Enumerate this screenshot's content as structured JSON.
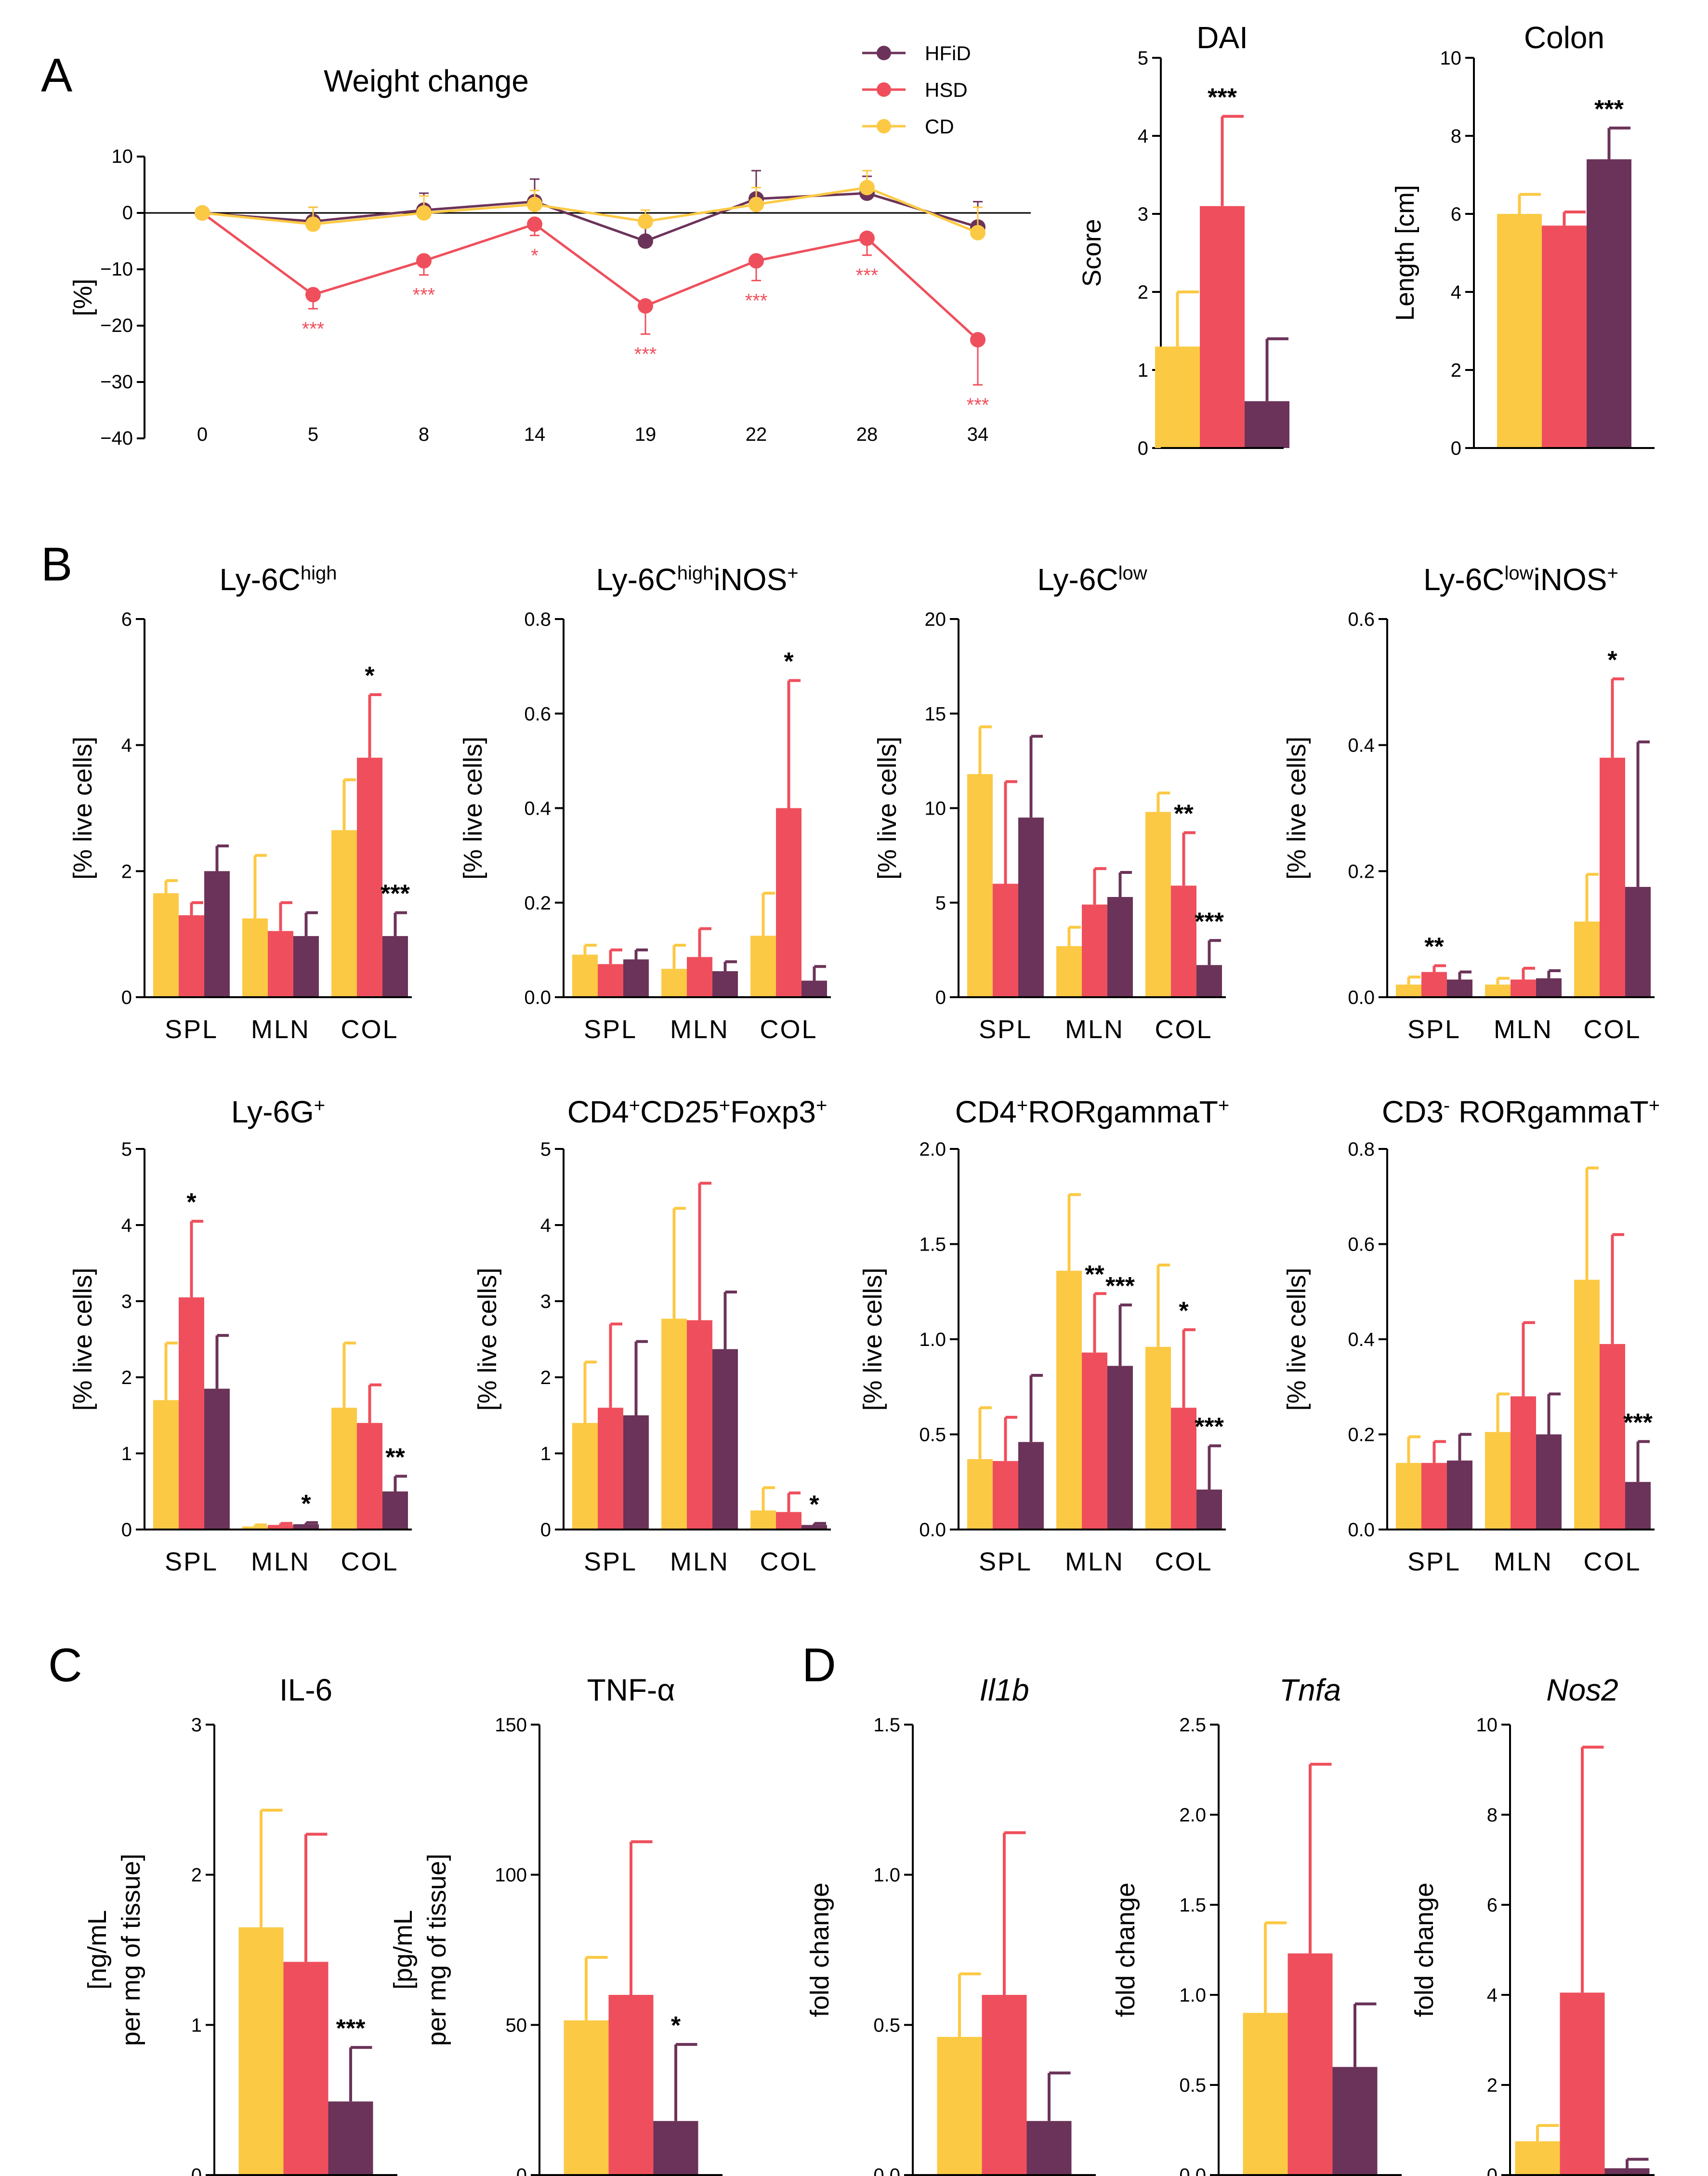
{
  "colors": {
    "CD": "#fcc944",
    "HSD": "#ef4f5c",
    "HFiD": "#6b3359",
    "text": "#000000"
  },
  "panel_labels": {
    "A": "A",
    "B": "B",
    "C": "C",
    "D": "D"
  },
  "chart_data": [
    {
      "id": "weight",
      "type": "line",
      "title": "Weight change",
      "ylabel": "[%]",
      "x": [
        "0",
        "5",
        "8",
        "14",
        "19",
        "22",
        "28",
        "34"
      ],
      "ylim": [
        -40,
        10
      ],
      "yticks": [
        "10",
        "0",
        "−10",
        "−20",
        "−30",
        "−40"
      ],
      "ytickvals": [
        10,
        0,
        -10,
        -20,
        -30,
        -40
      ],
      "legend": [
        "HFiD",
        "HSD",
        "CD"
      ],
      "series": [
        {
          "name": "HFiD",
          "values": [
            0,
            -1.5,
            0.5,
            2,
            -5,
            2.5,
            3.5,
            -2.5
          ],
          "err": [
            0,
            2.5,
            3,
            4,
            3,
            5,
            3,
            4.5
          ]
        },
        {
          "name": "HSD",
          "values": [
            0,
            -14.5,
            -8.5,
            -2,
            -16.5,
            -8.5,
            -4.5,
            -22.5
          ],
          "err": [
            0,
            2.5,
            2.5,
            2,
            5,
            3.5,
            3,
            8
          ]
        },
        {
          "name": "CD",
          "values": [
            0,
            -2,
            0,
            1.5,
            -1.5,
            1.5,
            4.5,
            -3.5
          ],
          "err": [
            0,
            3,
            3,
            2.5,
            2,
            3,
            3,
            4.5
          ]
        }
      ],
      "sig": [
        "",
        "***",
        "***",
        "*",
        "***",
        "***",
        "***",
        "***"
      ]
    },
    {
      "id": "dai",
      "type": "bar",
      "title": "DAI",
      "ylabel": "Score",
      "ylim": [
        0,
        5
      ],
      "yticks": [
        "0",
        "1",
        "2",
        "3",
        "4",
        "5"
      ],
      "ytickvals": [
        0,
        1,
        2,
        3,
        4,
        5
      ],
      "categories": [
        ""
      ],
      "series": [
        {
          "name": "CD",
          "values": [
            1.3
          ],
          "err": [
            0.7
          ]
        },
        {
          "name": "HSD",
          "values": [
            3.1
          ],
          "err": [
            1.15
          ]
        },
        {
          "name": "HFiD",
          "values": [
            0.6
          ],
          "err": [
            0.8
          ]
        }
      ],
      "stars": [
        {
          "cat": 0,
          "s": 1,
          "t": "***"
        }
      ]
    },
    {
      "id": "colon",
      "type": "bar",
      "title": "Colon",
      "ylabel": "Length [cm]",
      "ylim": [
        0,
        10
      ],
      "yticks": [
        "0",
        "2",
        "4",
        "6",
        "8",
        "10"
      ],
      "ytickvals": [
        0,
        2,
        4,
        6,
        8,
        10
      ],
      "categories": [
        ""
      ],
      "series": [
        {
          "name": "CD",
          "values": [
            6
          ],
          "err": [
            0.5
          ]
        },
        {
          "name": "HSD",
          "values": [
            5.7
          ],
          "err": [
            0.35
          ]
        },
        {
          "name": "HFiD",
          "values": [
            7.4
          ],
          "err": [
            0.8
          ]
        }
      ],
      "stars": [
        {
          "cat": 0,
          "s": 2,
          "t": "***"
        }
      ]
    },
    {
      "id": "ly6chigh",
      "type": "bar",
      "title": "Ly-6C",
      "title_sup": "high",
      "title_rest": "",
      "ylabel": "[% live cells]",
      "ylim": [
        0,
        6
      ],
      "yticks": [
        "0",
        "2",
        "4",
        "6"
      ],
      "ytickvals": [
        0,
        2,
        4,
        6
      ],
      "categories": [
        "SPL",
        "MLN",
        "COL"
      ],
      "series": [
        {
          "name": "CD",
          "values": [
            1.65,
            1.25,
            2.65
          ],
          "err": [
            0.2,
            1.0,
            0.8
          ]
        },
        {
          "name": "HSD",
          "values": [
            1.3,
            1.05,
            3.8
          ],
          "err": [
            0.2,
            0.45,
            1.0
          ]
        },
        {
          "name": "HFiD",
          "values": [
            2.0,
            0.97,
            0.97
          ],
          "err": [
            0.4,
            0.37,
            0.37
          ]
        }
      ],
      "stars": [
        {
          "cat": 2,
          "s": 1,
          "t": "*"
        },
        {
          "cat": 2,
          "s": 2,
          "t": "***"
        }
      ]
    },
    {
      "id": "ly6chighinos",
      "type": "bar",
      "title": "Ly-6C",
      "title_sup": "high",
      "title_rest": "iNOS",
      "title_sup2": "+",
      "ylabel": "[% live cells]",
      "ylim": [
        0,
        0.8
      ],
      "yticks": [
        "0.0",
        "0.2",
        "0.4",
        "0.6",
        "0.8"
      ],
      "ytickvals": [
        0,
        0.2,
        0.4,
        0.6,
        0.8
      ],
      "categories": [
        "SPL",
        "MLN",
        "COL"
      ],
      "series": [
        {
          "name": "CD",
          "values": [
            0.09,
            0.06,
            0.13
          ],
          "err": [
            0.02,
            0.05,
            0.09
          ]
        },
        {
          "name": "HSD",
          "values": [
            0.07,
            0.085,
            0.4
          ],
          "err": [
            0.03,
            0.06,
            0.27
          ]
        },
        {
          "name": "HFiD",
          "values": [
            0.08,
            0.055,
            0.035
          ],
          "err": [
            0.02,
            0.02,
            0.03
          ]
        }
      ],
      "stars": [
        {
          "cat": 2,
          "s": 1,
          "t": "*"
        }
      ]
    },
    {
      "id": "ly6clow",
      "type": "bar",
      "title": "Ly-6C",
      "title_sup": "low",
      "title_rest": "",
      "ylabel": "[% live cells]",
      "ylim": [
        0,
        20
      ],
      "yticks": [
        "0",
        "5",
        "10",
        "15",
        "20"
      ],
      "ytickvals": [
        0,
        5,
        10,
        15,
        20
      ],
      "categories": [
        "SPL",
        "MLN",
        "COL"
      ],
      "series": [
        {
          "name": "CD",
          "values": [
            11.8,
            2.7,
            9.8
          ],
          "err": [
            2.5,
            1.0,
            1.0
          ]
        },
        {
          "name": "HSD",
          "values": [
            6,
            4.9,
            5.9
          ],
          "err": [
            5.4,
            1.9,
            2.8
          ]
        },
        {
          "name": "HFiD",
          "values": [
            9.5,
            5.3,
            1.7
          ],
          "err": [
            4.3,
            1.3,
            1.3
          ]
        }
      ],
      "stars": [
        {
          "cat": 2,
          "s": 1,
          "t": "**"
        },
        {
          "cat": 2,
          "s": 2,
          "t": "***"
        }
      ]
    },
    {
      "id": "ly6clowinos",
      "type": "bar",
      "title": "Ly-6C",
      "title_sup": "low",
      "title_rest": "iNOS",
      "title_sup2": "+",
      "ylabel": "[% live cells]",
      "ylim": [
        0,
        0.6
      ],
      "yticks": [
        "0.0",
        "0.2",
        "0.4",
        "0.6"
      ],
      "ytickvals": [
        0,
        0.2,
        0.4,
        0.6
      ],
      "categories": [
        "SPL",
        "MLN",
        "COL"
      ],
      "series": [
        {
          "name": "CD",
          "values": [
            0.02,
            0.02,
            0.12
          ],
          "err": [
            0.012,
            0.01,
            0.075
          ]
        },
        {
          "name": "HSD",
          "values": [
            0.04,
            0.028,
            0.38
          ],
          "err": [
            0.01,
            0.018,
            0.125
          ]
        },
        {
          "name": "HFiD",
          "values": [
            0.028,
            0.03,
            0.175
          ],
          "err": [
            0.012,
            0.012,
            0.23
          ]
        }
      ],
      "stars": [
        {
          "cat": 0,
          "s": 1,
          "t": "**"
        },
        {
          "cat": 2,
          "s": 1,
          "t": "*"
        }
      ]
    },
    {
      "id": "ly6g",
      "type": "bar",
      "title": "Ly-6G",
      "title_sup": "+",
      "title_rest": "",
      "ylabel": "[% live cells]",
      "ylim": [
        0,
        5
      ],
      "yticks": [
        "0",
        "1",
        "2",
        "3",
        "4",
        "5"
      ],
      "ytickvals": [
        0,
        1,
        2,
        3,
        4,
        5
      ],
      "categories": [
        "SPL",
        "MLN",
        "COL"
      ],
      "series": [
        {
          "name": "CD",
          "values": [
            1.7,
            0.04,
            1.6
          ],
          "err": [
            0.75,
            0.02,
            0.85
          ]
        },
        {
          "name": "HSD",
          "values": [
            3.05,
            0.06,
            1.4
          ],
          "err": [
            1.0,
            0.02,
            0.5
          ]
        },
        {
          "name": "HFiD",
          "values": [
            1.85,
            0.07,
            0.5
          ],
          "err": [
            0.7,
            0.02,
            0.2
          ]
        }
      ],
      "stars": [
        {
          "cat": 0,
          "s": 1,
          "t": "*"
        },
        {
          "cat": 1,
          "s": 2,
          "t": "*"
        },
        {
          "cat": 2,
          "s": 2,
          "t": "**"
        }
      ]
    },
    {
      "id": "treg",
      "type": "bar",
      "title": "CD4",
      "title_sup": "+",
      "title_rest": "CD25",
      "title_sup2": "+",
      "title_rest2": "Foxp3",
      "title_sup3": "+",
      "ylabel": "[% live cells]",
      "ylim": [
        0,
        5
      ],
      "yticks": [
        "0",
        "1",
        "2",
        "3",
        "4",
        "5"
      ],
      "ytickvals": [
        0,
        1,
        2,
        3,
        4,
        5
      ],
      "categories": [
        "SPL",
        "MLN",
        "COL"
      ],
      "series": [
        {
          "name": "CD",
          "values": [
            1.4,
            2.77,
            0.25
          ],
          "err": [
            0.8,
            1.45,
            0.3
          ]
        },
        {
          "name": "HSD",
          "values": [
            1.6,
            2.75,
            0.23
          ],
          "err": [
            1.1,
            1.8,
            0.25
          ]
        },
        {
          "name": "HFiD",
          "values": [
            1.5,
            2.37,
            0.06
          ],
          "err": [
            0.97,
            0.75,
            0.02
          ]
        }
      ],
      "stars": [
        {
          "cat": 2,
          "s": 2,
          "t": "*"
        }
      ]
    },
    {
      "id": "th17",
      "type": "bar",
      "title": "CD4",
      "title_sup": "+",
      "title_rest": "RORgammaT",
      "title_sup2": "+",
      "ylabel": "[% live cells]",
      "ylim": [
        0,
        2
      ],
      "yticks": [
        "0.0",
        "0.5",
        "1.0",
        "1.5",
        "2.0"
      ],
      "ytickvals": [
        0,
        0.5,
        1,
        1.5,
        2
      ],
      "categories": [
        "SPL",
        "MLN",
        "COL"
      ],
      "series": [
        {
          "name": "CD",
          "values": [
            0.37,
            1.36,
            0.96
          ],
          "err": [
            0.27,
            0.4,
            0.43
          ]
        },
        {
          "name": "HSD",
          "values": [
            0.36,
            0.93,
            0.64
          ],
          "err": [
            0.23,
            0.31,
            0.41
          ]
        },
        {
          "name": "HFiD",
          "values": [
            0.46,
            0.86,
            0.21
          ],
          "err": [
            0.35,
            0.32,
            0.23
          ]
        }
      ],
      "stars": [
        {
          "cat": 1,
          "s": 1,
          "t": "**"
        },
        {
          "cat": 1,
          "s": 2,
          "t": "***"
        },
        {
          "cat": 2,
          "s": 1,
          "t": "*"
        },
        {
          "cat": 2,
          "s": 2,
          "t": "***"
        }
      ]
    },
    {
      "id": "ilc3",
      "type": "bar",
      "title": "CD3",
      "title_sup": "-",
      "title_rest": " RORgammaT",
      "title_sup2": "+",
      "ylabel": "[% live cells]",
      "ylim": [
        0,
        0.8
      ],
      "yticks": [
        "0.0",
        "0.2",
        "0.4",
        "0.6",
        "0.8"
      ],
      "ytickvals": [
        0,
        0.2,
        0.4,
        0.6,
        0.8
      ],
      "categories": [
        "SPL",
        "MLN",
        "COL"
      ],
      "series": [
        {
          "name": "CD",
          "values": [
            0.14,
            0.205,
            0.525
          ],
          "err": [
            0.055,
            0.08,
            0.235
          ]
        },
        {
          "name": "HSD",
          "values": [
            0.14,
            0.28,
            0.39
          ],
          "err": [
            0.045,
            0.155,
            0.23
          ]
        },
        {
          "name": "HFiD",
          "values": [
            0.145,
            0.2,
            0.1
          ],
          "err": [
            0.055,
            0.085,
            0.085
          ]
        }
      ],
      "stars": [
        {
          "cat": 2,
          "s": 2,
          "t": "***"
        }
      ]
    },
    {
      "id": "il6",
      "type": "bar",
      "title": "IL-6",
      "ylabel": "[ng/mL",
      "ylabel2": "per mg of tissue]",
      "ylim": [
        0,
        3
      ],
      "yticks": [
        "0",
        "1",
        "2",
        "3"
      ],
      "ytickvals": [
        0,
        1,
        2,
        3
      ],
      "categories": [
        ""
      ],
      "series": [
        {
          "name": "CD",
          "values": [
            1.65
          ],
          "err": [
            0.78
          ]
        },
        {
          "name": "HSD",
          "values": [
            1.42
          ],
          "err": [
            0.85
          ]
        },
        {
          "name": "HFiD",
          "values": [
            0.49
          ],
          "err": [
            0.36
          ]
        }
      ],
      "stars": [
        {
          "cat": 0,
          "s": 2,
          "t": "***"
        }
      ]
    },
    {
      "id": "tnf",
      "type": "bar",
      "title": "TNF-α",
      "ylabel": "[pg/mL",
      "ylabel2": "per mg of tissue]",
      "ylim": [
        0,
        150
      ],
      "yticks": [
        "0",
        "50",
        "100",
        "150"
      ],
      "ytickvals": [
        0,
        50,
        100,
        150
      ],
      "categories": [
        ""
      ],
      "series": [
        {
          "name": "CD",
          "values": [
            51.5
          ],
          "err": [
            21
          ]
        },
        {
          "name": "HSD",
          "values": [
            60
          ],
          "err": [
            51
          ]
        },
        {
          "name": "HFiD",
          "values": [
            18
          ],
          "err": [
            25.5
          ]
        }
      ],
      "stars": [
        {
          "cat": 0,
          "s": 2,
          "t": "*"
        }
      ]
    },
    {
      "id": "il1b",
      "type": "bar",
      "title": "Il1b",
      "italic": true,
      "ylabel": "fold change",
      "ylim": [
        0,
        1.5
      ],
      "yticks": [
        "0.0",
        "0.5",
        "1.0",
        "1.5"
      ],
      "ytickvals": [
        0,
        0.5,
        1,
        1.5
      ],
      "categories": [
        ""
      ],
      "series": [
        {
          "name": "CD",
          "values": [
            0.46
          ],
          "err": [
            0.21
          ]
        },
        {
          "name": "HSD",
          "values": [
            0.6
          ],
          "err": [
            0.54
          ]
        },
        {
          "name": "HFiD",
          "values": [
            0.18
          ],
          "err": [
            0.16
          ]
        }
      ],
      "stars": []
    },
    {
      "id": "tnfa",
      "type": "bar",
      "title": "Tnfa",
      "italic": true,
      "ylabel": "fold change",
      "ylim": [
        0,
        2.5
      ],
      "yticks": [
        "0.0",
        "0.5",
        "1.0",
        "1.5",
        "2.0",
        "2.5"
      ],
      "ytickvals": [
        0,
        0.5,
        1,
        1.5,
        2,
        2.5
      ],
      "categories": [
        ""
      ],
      "series": [
        {
          "name": "CD",
          "values": [
            0.9
          ],
          "err": [
            0.5
          ]
        },
        {
          "name": "HSD",
          "values": [
            1.23
          ],
          "err": [
            1.05
          ]
        },
        {
          "name": "HFiD",
          "values": [
            0.6
          ],
          "err": [
            0.35
          ]
        }
      ],
      "stars": []
    },
    {
      "id": "nos2",
      "type": "bar",
      "title": "Nos2",
      "italic": true,
      "ylabel": "fold change",
      "ylim": [
        0,
        10
      ],
      "yticks": [
        "0",
        "2",
        "4",
        "6",
        "8",
        "10"
      ],
      "ytickvals": [
        0,
        2,
        4,
        6,
        8,
        10
      ],
      "categories": [
        ""
      ],
      "series": [
        {
          "name": "CD",
          "values": [
            0.75
          ],
          "err": [
            0.35
          ]
        },
        {
          "name": "HSD",
          "values": [
            4.05
          ],
          "err": [
            5.45
          ]
        },
        {
          "name": "HFiD",
          "values": [
            0.15
          ],
          "err": [
            0.2
          ]
        }
      ],
      "stars": []
    }
  ]
}
